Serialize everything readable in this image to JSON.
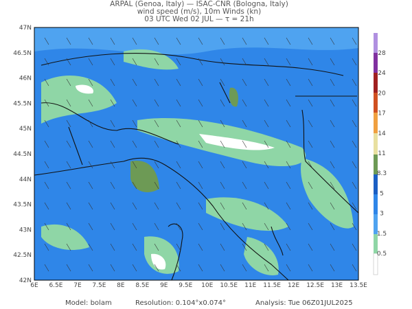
{
  "header": {
    "lines": [
      "ARPAL (Genoa, Italy)  —  ISAC-CNR (Bologna, Italy)",
      "wind speed (m/s), 10m Winds (kn)",
      "03 UTC Wed 02 JUL  —  τ = 21h"
    ]
  },
  "map": {
    "lon_labels": [
      "6E",
      "6.5E",
      "7E",
      "7.5E",
      "8E",
      "8.5E",
      "9E",
      "9.5E",
      "10E",
      "10.5E",
      "11E",
      "11.5E",
      "12E",
      "12.5E",
      "13E",
      "13.5E"
    ],
    "lat_labels": [
      "47N",
      "46.5N",
      "46N",
      "45.5N",
      "45N",
      "44.5N",
      "44N",
      "43.5N",
      "43N",
      "42.5N",
      "42N"
    ]
  },
  "colorbar": {
    "ticks": [
      0.5,
      1.5,
      3,
      5,
      8.3,
      11,
      14,
      17,
      20,
      24,
      28
    ]
  },
  "footer": {
    "model": "Model: bolam",
    "resolution": "Resolution: 0.104°x0.074°",
    "analysis": "Analysis: Tue 06Z01JUL2025"
  }
}
